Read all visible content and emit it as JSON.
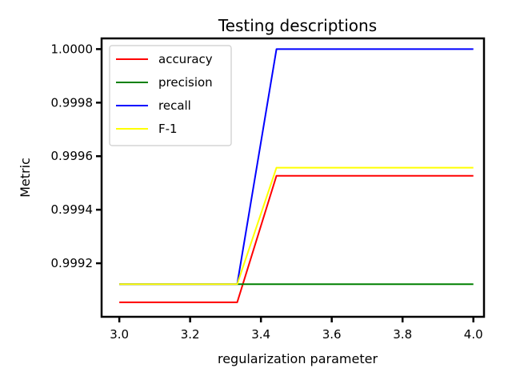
{
  "chart_data": {
    "type": "line",
    "title": "Testing descriptions",
    "xlabel": "regularization parameter",
    "ylabel": "Metric",
    "xlim": [
      2.95,
      4.03
    ],
    "ylim": [
      0.999,
      1.00004
    ],
    "xticks": [
      "3.0",
      "3.2",
      "3.4",
      "3.6",
      "3.8",
      "4.0"
    ],
    "yticks": [
      "0.9992",
      "0.9994",
      "0.9996",
      "0.9998",
      "1.0000"
    ],
    "legend_position": "top-left",
    "grid": false,
    "x": [
      3.0,
      3.111,
      3.222,
      3.333,
      3.444,
      3.556,
      3.667,
      3.778,
      3.889,
      4.0
    ],
    "series": [
      {
        "name": "accuracy",
        "color": "#ff0000",
        "values": [
          0.999054,
          0.999054,
          0.999054,
          0.999054,
          0.999527,
          0.999527,
          0.999527,
          0.999527,
          0.999527,
          0.999527
        ]
      },
      {
        "name": "precision",
        "color": "#008000",
        "values": [
          0.999122,
          0.999122,
          0.999122,
          0.999122,
          0.999122,
          0.999122,
          0.999122,
          0.999122,
          0.999122,
          0.999122
        ]
      },
      {
        "name": "recall",
        "color": "#0000ff",
        "values": [
          0.999122,
          0.999122,
          0.999122,
          0.999122,
          1.0,
          1.0,
          1.0,
          1.0,
          1.0,
          1.0
        ]
      },
      {
        "name": "F-1",
        "color": "#ffff00",
        "values": [
          0.999122,
          0.999122,
          0.999122,
          0.999122,
          0.999557,
          0.999557,
          0.999557,
          0.999557,
          0.999557,
          0.999557
        ]
      }
    ]
  }
}
